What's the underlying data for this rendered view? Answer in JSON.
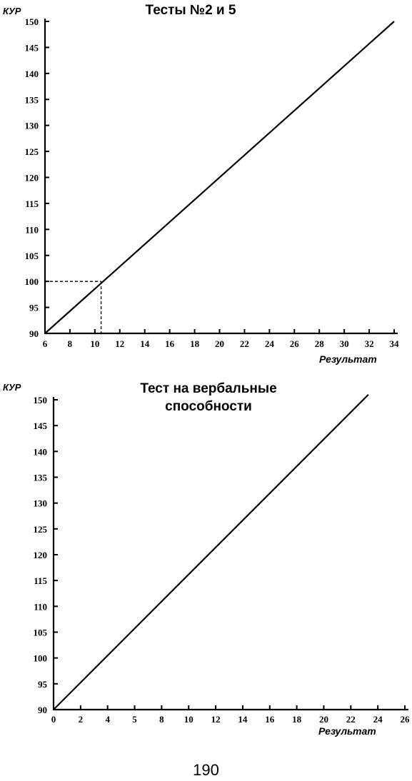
{
  "chart_data": [
    {
      "type": "line",
      "title": "Тесты №2 и 5",
      "ylabel": "КУР",
      "xlabel": "Результат",
      "x_ticks": [
        6,
        8,
        10,
        12,
        14,
        16,
        18,
        20,
        22,
        24,
        26,
        28,
        30,
        32,
        34
      ],
      "y_ticks": [
        90,
        95,
        100,
        105,
        110,
        115,
        120,
        125,
        130,
        135,
        140,
        145,
        150
      ],
      "xlim": [
        6,
        34
      ],
      "ylim": [
        90,
        150
      ],
      "series": [
        {
          "x": [
            6,
            34
          ],
          "y": [
            90,
            150
          ]
        }
      ],
      "reference_point": {
        "x": 10.5,
        "y": 100
      },
      "grid": false
    },
    {
      "type": "line",
      "title": [
        "Тест на вербальные",
        "способности"
      ],
      "ylabel": "КУР",
      "xlabel": "Результат",
      "x_ticks": [
        0,
        2,
        4,
        5,
        8,
        10,
        12,
        14,
        16,
        18,
        20,
        22,
        24,
        26
      ],
      "y_ticks": [
        90,
        95,
        100,
        105,
        110,
        115,
        120,
        125,
        130,
        135,
        140,
        145,
        150
      ],
      "xlim": [
        0,
        26
      ],
      "ylim": [
        90,
        150
      ],
      "series": [
        {
          "x": [
            0,
            23.3
          ],
          "y": [
            90,
            151
          ]
        }
      ],
      "grid": false
    }
  ],
  "page_number": "190"
}
